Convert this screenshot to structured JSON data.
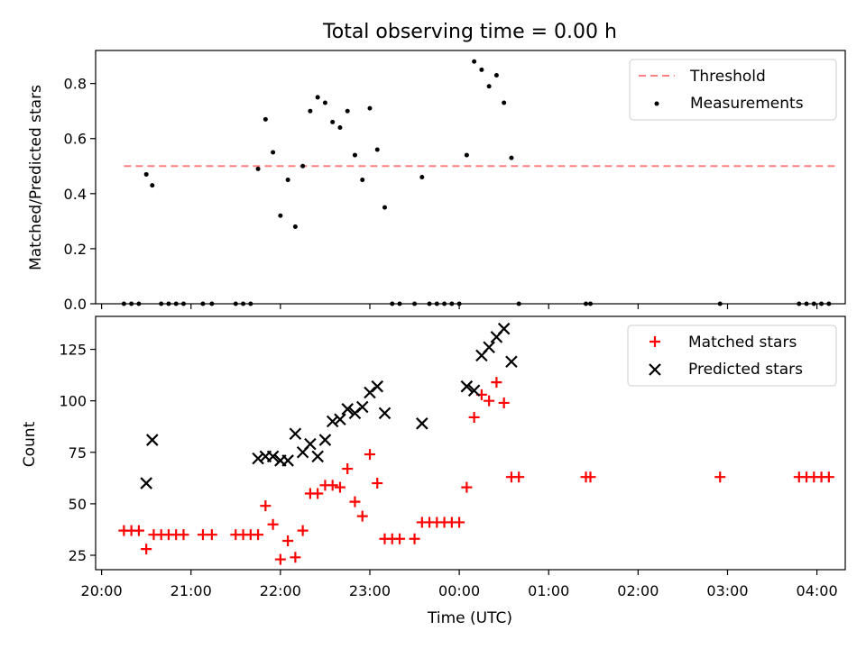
{
  "title": "Total observing time = 0.00 h",
  "chart_data": [
    {
      "type": "scatter",
      "ylabel": "Matched/Predicted stars",
      "ylim": [
        0,
        0.92
      ],
      "xlim": [
        "19:56",
        "04:19"
      ],
      "yticks": [
        "0.0",
        "0.2",
        "0.4",
        "0.6",
        "0.8"
      ],
      "yticks_values": [
        0,
        0.2,
        0.4,
        0.6,
        0.8
      ],
      "legend": {
        "position": "top-right",
        "entries": [
          "Threshold",
          "Measurements"
        ]
      },
      "threshold": {
        "name": "Threshold",
        "y": 0.5,
        "x_start": "20:15",
        "x_end": "04:15",
        "color": "#ff8080"
      },
      "series": [
        {
          "name": "Measurements",
          "color": "#000000",
          "marker": "dot",
          "points": [
            [
              "20:15",
              0
            ],
            [
              "20:20",
              0
            ],
            [
              "20:25",
              0
            ],
            [
              "20:30",
              0.47
            ],
            [
              "20:34",
              0.43
            ],
            [
              "20:40",
              0
            ],
            [
              "20:45",
              0
            ],
            [
              "20:50",
              0
            ],
            [
              "20:55",
              0
            ],
            [
              "21:08",
              0
            ],
            [
              "21:14",
              0
            ],
            [
              "21:30",
              0
            ],
            [
              "21:35",
              0
            ],
            [
              "21:40",
              0
            ],
            [
              "21:45",
              0.49
            ],
            [
              "21:50",
              0.67
            ],
            [
              "21:55",
              0.55
            ],
            [
              "22:00",
              0.32
            ],
            [
              "22:05",
              0.45
            ],
            [
              "22:10",
              0.28
            ],
            [
              "22:15",
              0.5
            ],
            [
              "22:20",
              0.7
            ],
            [
              "22:25",
              0.75
            ],
            [
              "22:30",
              0.73
            ],
            [
              "22:35",
              0.66
            ],
            [
              "22:40",
              0.64
            ],
            [
              "22:45",
              0.7
            ],
            [
              "22:50",
              0.54
            ],
            [
              "22:55",
              0.45
            ],
            [
              "23:00",
              0.71
            ],
            [
              "23:05",
              0.56
            ],
            [
              "23:10",
              0.35
            ],
            [
              "23:15",
              0
            ],
            [
              "23:20",
              0
            ],
            [
              "23:30",
              0
            ],
            [
              "23:35",
              0.46
            ],
            [
              "23:40",
              0
            ],
            [
              "23:45",
              0
            ],
            [
              "23:50",
              0
            ],
            [
              "23:55",
              0
            ],
            [
              "00:00",
              0
            ],
            [
              "00:05",
              0.54
            ],
            [
              "00:10",
              0.88
            ],
            [
              "00:15",
              0.85
            ],
            [
              "00:20",
              0.79
            ],
            [
              "00:25",
              0.83
            ],
            [
              "00:30",
              0.73
            ],
            [
              "00:35",
              0.53
            ],
            [
              "00:40",
              0
            ],
            [
              "01:25",
              0
            ],
            [
              "01:28",
              0
            ],
            [
              "02:55",
              0
            ],
            [
              "03:48",
              0
            ],
            [
              "03:53",
              0
            ],
            [
              "03:58",
              0
            ],
            [
              "04:03",
              0
            ],
            [
              "04:08",
              0
            ]
          ]
        }
      ]
    },
    {
      "type": "scatter",
      "xlabel": "Time (UTC)",
      "ylabel": "Count",
      "ylim": [
        18,
        141
      ],
      "xlim": [
        "19:56",
        "04:19"
      ],
      "yticks": [
        "25",
        "50",
        "75",
        "100",
        "125"
      ],
      "yticks_values": [
        25,
        50,
        75,
        100,
        125
      ],
      "xticks": [
        "20:00",
        "21:00",
        "22:00",
        "23:00",
        "00:00",
        "01:00",
        "02:00",
        "03:00",
        "04:00"
      ],
      "legend": {
        "position": "top-right",
        "entries": [
          "Matched stars",
          "Predicted stars"
        ]
      },
      "series": [
        {
          "name": "Matched stars",
          "color": "#ff0000",
          "marker": "plus",
          "points": [
            [
              "20:15",
              37
            ],
            [
              "20:20",
              37
            ],
            [
              "20:25",
              37
            ],
            [
              "20:30",
              28
            ],
            [
              "20:35",
              35
            ],
            [
              "20:40",
              35
            ],
            [
              "20:45",
              35
            ],
            [
              "20:50",
              35
            ],
            [
              "20:55",
              35
            ],
            [
              "21:08",
              35
            ],
            [
              "21:14",
              35
            ],
            [
              "21:30",
              35
            ],
            [
              "21:35",
              35
            ],
            [
              "21:40",
              35
            ],
            [
              "21:45",
              35
            ],
            [
              "21:50",
              49
            ],
            [
              "21:55",
              40
            ],
            [
              "22:00",
              23
            ],
            [
              "22:05",
              32
            ],
            [
              "22:10",
              24
            ],
            [
              "22:15",
              37
            ],
            [
              "22:20",
              55
            ],
            [
              "22:25",
              55
            ],
            [
              "22:30",
              59
            ],
            [
              "22:35",
              59
            ],
            [
              "22:40",
              58
            ],
            [
              "22:45",
              67
            ],
            [
              "22:50",
              51
            ],
            [
              "22:55",
              44
            ],
            [
              "23:00",
              74
            ],
            [
              "23:05",
              60
            ],
            [
              "23:10",
              33
            ],
            [
              "23:15",
              33
            ],
            [
              "23:20",
              33
            ],
            [
              "23:30",
              33
            ],
            [
              "23:35",
              41
            ],
            [
              "23:40",
              41
            ],
            [
              "23:45",
              41
            ],
            [
              "23:50",
              41
            ],
            [
              "23:55",
              41
            ],
            [
              "00:00",
              41
            ],
            [
              "00:05",
              58
            ],
            [
              "00:10",
              92
            ],
            [
              "00:15",
              103
            ],
            [
              "00:20",
              100
            ],
            [
              "00:25",
              109
            ],
            [
              "00:30",
              99
            ],
            [
              "00:35",
              63
            ],
            [
              "00:40",
              63
            ],
            [
              "01:25",
              63
            ],
            [
              "01:28",
              63
            ],
            [
              "02:55",
              63
            ],
            [
              "03:48",
              63
            ],
            [
              "03:53",
              63
            ],
            [
              "03:58",
              63
            ],
            [
              "04:03",
              63
            ],
            [
              "04:08",
              63
            ]
          ]
        },
        {
          "name": "Predicted stars",
          "color": "#000000",
          "marker": "x",
          "points": [
            [
              "20:30",
              60
            ],
            [
              "20:34",
              81
            ],
            [
              "21:45",
              72
            ],
            [
              "21:50",
              73
            ],
            [
              "21:55",
              73
            ],
            [
              "22:00",
              71
            ],
            [
              "22:05",
              71
            ],
            [
              "22:10",
              84
            ],
            [
              "22:15",
              75
            ],
            [
              "22:20",
              79
            ],
            [
              "22:25",
              73
            ],
            [
              "22:30",
              81
            ],
            [
              "22:35",
              90
            ],
            [
              "22:40",
              91
            ],
            [
              "22:45",
              96
            ],
            [
              "22:50",
              94
            ],
            [
              "22:55",
              97
            ],
            [
              "23:00",
              104
            ],
            [
              "23:05",
              107
            ],
            [
              "23:10",
              94
            ],
            [
              "23:35",
              89
            ],
            [
              "00:05",
              107
            ],
            [
              "00:10",
              105
            ],
            [
              "00:15",
              122
            ],
            [
              "00:20",
              126
            ],
            [
              "00:25",
              131
            ],
            [
              "00:30",
              135
            ],
            [
              "00:35",
              119
            ]
          ]
        }
      ]
    }
  ]
}
